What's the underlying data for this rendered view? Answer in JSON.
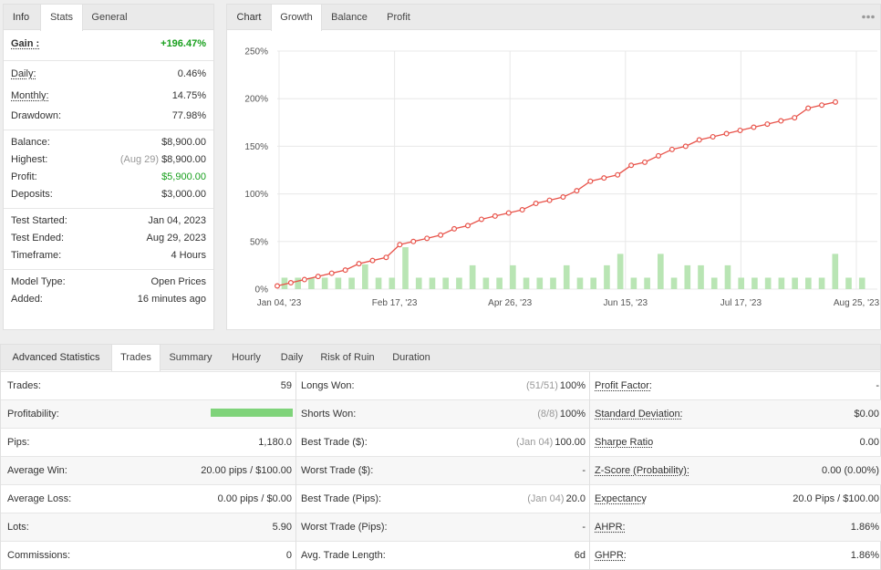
{
  "stats_panel": {
    "tabs": [
      {
        "label": "Info",
        "active": false
      },
      {
        "label": "Stats",
        "active": true
      },
      {
        "label": "General",
        "active": false
      }
    ],
    "gain": {
      "label": "Gain :",
      "value": "+196.47%"
    },
    "daily": {
      "label": "Daily:",
      "value": "0.46%"
    },
    "monthly": {
      "label": "Monthly:",
      "value": "14.75%"
    },
    "drawdown": {
      "label": "Drawdown:",
      "value": "77.98%"
    },
    "balance": {
      "label": "Balance:",
      "value": "$8,900.00"
    },
    "highest": {
      "label": "Highest:",
      "date": "(Aug 29)",
      "value": "$8,900.00"
    },
    "profit": {
      "label": "Profit:",
      "value": "$5,900.00"
    },
    "deposits": {
      "label": "Deposits:",
      "value": "$3,000.00"
    },
    "test_started": {
      "label": "Test Started:",
      "value": "Jan 04, 2023"
    },
    "test_ended": {
      "label": "Test Ended:",
      "value": "Aug 29, 2023"
    },
    "timeframe": {
      "label": "Timeframe:",
      "value": "4 Hours"
    },
    "model_type": {
      "label": "Model Type:",
      "value": "Open Prices"
    },
    "added": {
      "label": "Added:",
      "value": "16 minutes ago"
    },
    "colors": {
      "positive": "#19a01e"
    }
  },
  "chart_panel": {
    "tabs": [
      {
        "label": "Chart",
        "active": false
      },
      {
        "label": "Growth",
        "active": true
      },
      {
        "label": "Balance",
        "active": false
      },
      {
        "label": "Profit",
        "active": false
      }
    ],
    "menu_icon": "more-dots-icon"
  },
  "chart_data": {
    "type": "line",
    "title": "",
    "xlabel": "",
    "ylabel": "",
    "ylim": [
      0,
      250
    ],
    "yticks": [
      "0%",
      "50%",
      "100%",
      "150%",
      "200%",
      "250%"
    ],
    "xticks": [
      "Jan 04, '23",
      "Feb 17, '23",
      "Apr 26, '23",
      "Jun 15, '23",
      "Jul 17, '23",
      "Aug 25, '23"
    ],
    "grid": true,
    "colors": {
      "line": "#e8534a",
      "bars": "#b9e5b4"
    },
    "series": [
      {
        "kind": "line",
        "values": [
          3.3,
          6.7,
          10,
          13.3,
          16.7,
          20,
          26.7,
          30,
          33.3,
          46.7,
          50,
          53.3,
          56.7,
          63.3,
          66.7,
          73.3,
          76.7,
          80,
          83.3,
          90,
          93.3,
          96.7,
          103.3,
          113.3,
          116.7,
          120,
          130,
          133.3,
          140,
          146.7,
          150,
          156.7,
          160,
          163.3,
          166.7,
          170,
          173.3,
          176.7,
          180,
          190,
          193.3,
          196.5
        ]
      },
      {
        "kind": "bar",
        "values": [
          12,
          12,
          12,
          12,
          12,
          12,
          26,
          12,
          12,
          44,
          12,
          12,
          12,
          12,
          25,
          12,
          12,
          25,
          12,
          12,
          12,
          25,
          12,
          12,
          25,
          37,
          12,
          12,
          37,
          12,
          25,
          25,
          12,
          25,
          12,
          12,
          12,
          12,
          12,
          12,
          12,
          37,
          12,
          12
        ]
      }
    ]
  },
  "advanced_panel": {
    "tabs": [
      {
        "label": "Advanced Statistics",
        "active": false
      },
      {
        "label": "Trades",
        "active": true
      },
      {
        "label": "Summary",
        "active": false
      },
      {
        "label": "Hourly",
        "active": false
      },
      {
        "label": "Daily",
        "active": false
      },
      {
        "label": "Risk of Ruin",
        "active": false
      },
      {
        "label": "Duration",
        "active": false
      }
    ],
    "profitability_fraction": 1.0,
    "rows": [
      {
        "c1_label": "Trades:",
        "c1_value": "59",
        "c2_label": "Longs Won:",
        "c2_sub": "(51/51)",
        "c2_value": "100%",
        "c3_label": "Profit Factor:",
        "c3_value": "-"
      },
      {
        "c1_label": "Profitability:",
        "c1_value": "",
        "c2_label": "Shorts Won:",
        "c2_sub": "(8/8)",
        "c2_value": "100%",
        "c3_label": "Standard Deviation:",
        "c3_value": "$0.00"
      },
      {
        "c1_label": "Pips:",
        "c1_value": "1,180.0",
        "c2_label": "Best Trade ($):",
        "c2_sub": "(Jan 04)",
        "c2_value": "100.00",
        "c3_label": "Sharpe Ratio",
        "c3_value": "0.00"
      },
      {
        "c1_label": "Average Win:",
        "c1_value": "20.00 pips / $100.00",
        "c2_label": "Worst Trade ($):",
        "c2_sub": "",
        "c2_value": "-",
        "c3_label": "Z-Score (Probability):",
        "c3_value": "0.00 (0.00%)"
      },
      {
        "c1_label": "Average Loss:",
        "c1_value": "0.00 pips / $0.00",
        "c2_label": "Best Trade (Pips):",
        "c2_sub": "(Jan 04)",
        "c2_value": "20.0",
        "c3_label": "Expectancy",
        "c3_value": "20.0 Pips / $100.00"
      },
      {
        "c1_label": "Lots:",
        "c1_value": "5.90",
        "c2_label": "Worst Trade (Pips):",
        "c2_sub": "",
        "c2_value": "-",
        "c3_label": "AHPR:",
        "c3_value": "1.86%"
      },
      {
        "c1_label": "Commissions:",
        "c1_value": "0",
        "c2_label": "Avg. Trade Length:",
        "c2_sub": "",
        "c2_value": "6d",
        "c3_label": "GHPR:",
        "c3_value": "1.86%"
      }
    ]
  }
}
